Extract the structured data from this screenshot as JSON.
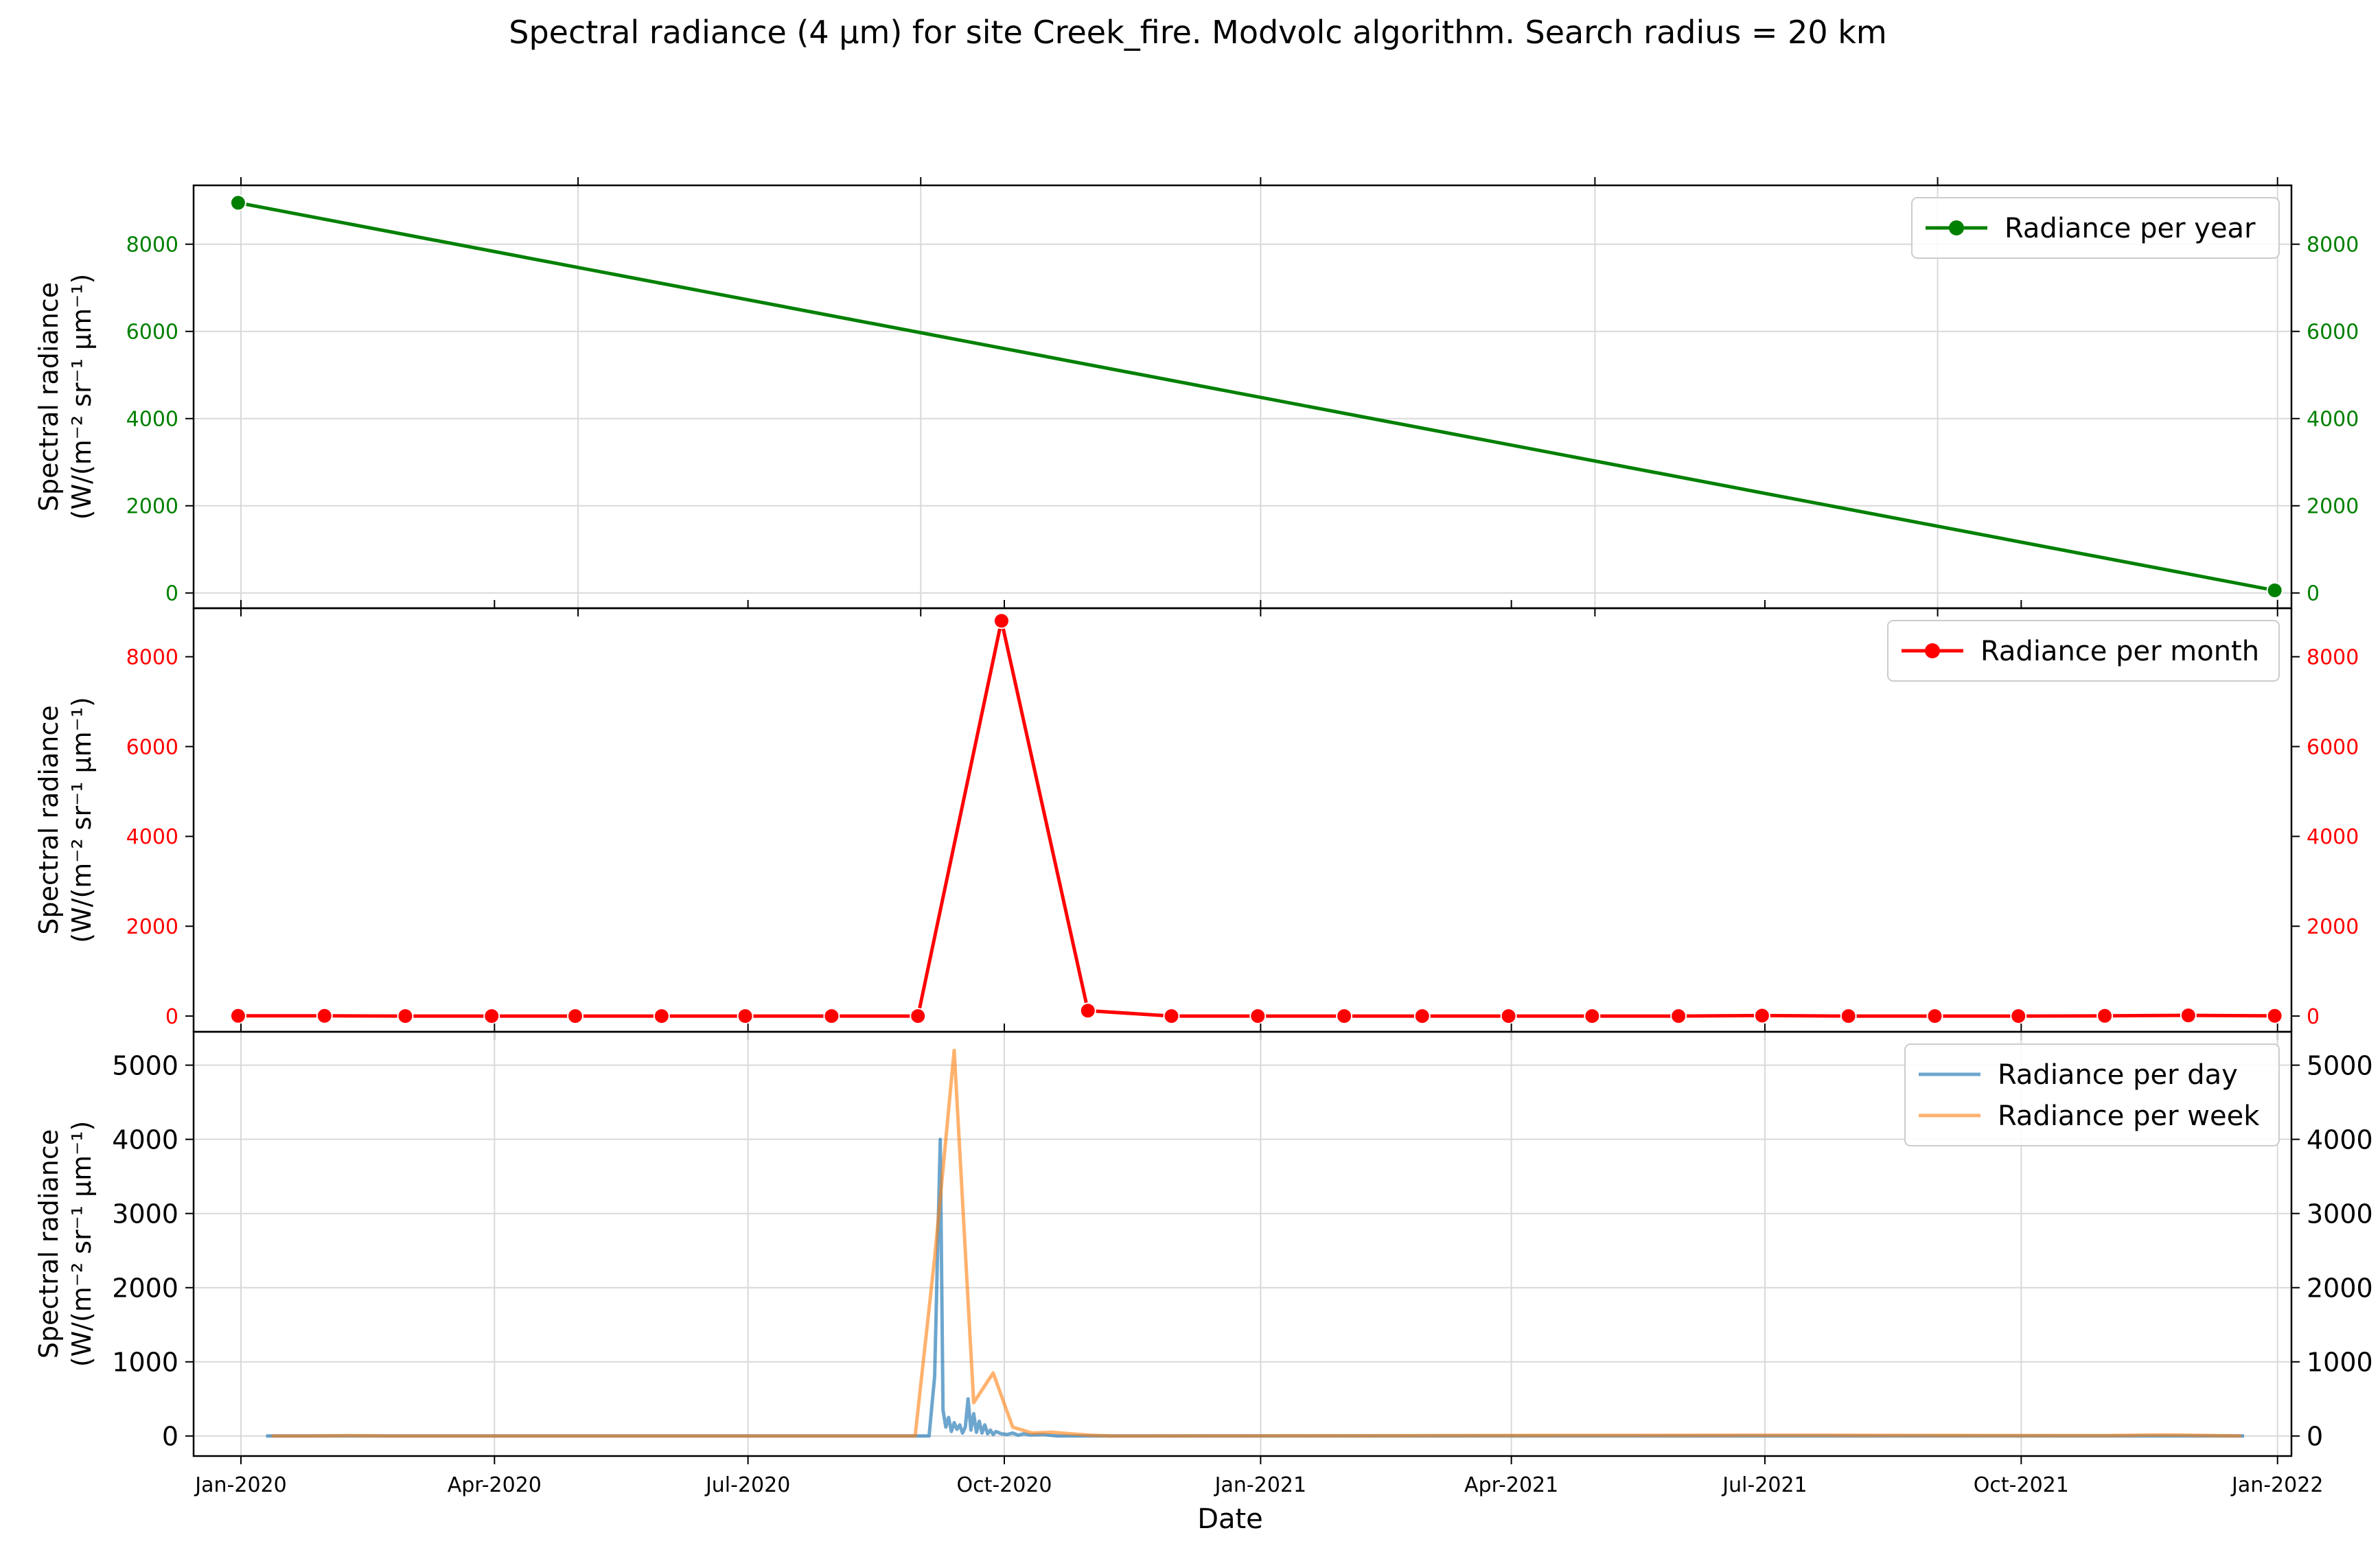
{
  "title": "Spectral radiance (4 µm) for site Creek_fire. Modvolc algorithm. Search radius = 20 km",
  "xlabel": "Date",
  "x_ticks": [
    {
      "label": "Jan-2020",
      "date": "2020-01-01"
    },
    {
      "label": "Apr-2020",
      "date": "2020-04-01"
    },
    {
      "label": "Jul-2020",
      "date": "2020-07-01"
    },
    {
      "label": "Oct-2020",
      "date": "2020-10-01"
    },
    {
      "label": "Jan-2021",
      "date": "2021-01-01"
    },
    {
      "label": "Apr-2021",
      "date": "2021-04-01"
    },
    {
      "label": "Jul-2021",
      "date": "2021-07-01"
    },
    {
      "label": "Oct-2021",
      "date": "2021-10-01"
    },
    {
      "label": "Jan-2022",
      "date": "2022-01-01"
    }
  ],
  "chart_data": [
    {
      "type": "line",
      "panel": "top",
      "ylabel_line1": "Spectral radiance",
      "ylabel_line2": "(W/(m⁻² sr⁻¹ µm⁻¹)",
      "ylim": [
        -350,
        9350
      ],
      "y_ticks": [
        0,
        2000,
        4000,
        6000,
        8000
      ],
      "grid": true,
      "tick_color": "#008000",
      "x_grid_dates": [
        "2020-01-01",
        "2020-05-01",
        "2020-09-01",
        "2021-01-01",
        "2021-05-01",
        "2021-09-01",
        "2022-01-01"
      ],
      "legend_position": "top-right",
      "series": [
        {
          "name": "Radiance per year",
          "color": "#008000",
          "marker": true,
          "x": [
            "2019-12-31",
            "2021-12-31"
          ],
          "y": [
            8950,
            60
          ]
        }
      ]
    },
    {
      "type": "line",
      "panel": "middle",
      "ylabel_line1": "Spectral radiance",
      "ylabel_line2": "(W/(m⁻² sr⁻¹ µm⁻¹)",
      "ylim": [
        -350,
        9080
      ],
      "y_ticks": [
        0,
        2000,
        4000,
        6000,
        8000
      ],
      "grid": false,
      "tick_color": "#ff0000",
      "legend_position": "top-right",
      "series": [
        {
          "name": "Radiance per month",
          "color": "#ff0000",
          "marker": true,
          "x": [
            "2019-12-31",
            "2020-01-31",
            "2020-02-29",
            "2020-03-31",
            "2020-04-30",
            "2020-05-31",
            "2020-06-30",
            "2020-07-31",
            "2020-08-31",
            "2020-09-30",
            "2020-10-31",
            "2020-11-30",
            "2020-12-31",
            "2021-01-31",
            "2021-02-28",
            "2021-03-31",
            "2021-04-30",
            "2021-05-31",
            "2021-06-30",
            "2021-07-31",
            "2021-08-31",
            "2021-09-30",
            "2021-10-31",
            "2021-11-30",
            "2021-12-31"
          ],
          "y": [
            5,
            5,
            0,
            0,
            0,
            0,
            0,
            0,
            0,
            8800,
            120,
            0,
            0,
            0,
            0,
            0,
            0,
            0,
            10,
            0,
            0,
            0,
            5,
            15,
            5
          ]
        }
      ]
    },
    {
      "type": "line",
      "panel": "bottom",
      "ylabel_line1": "Spectral radiance",
      "ylabel_line2": "(W/(m⁻² sr⁻¹ µm⁻¹)",
      "ylim": [
        -270,
        5450
      ],
      "y_ticks": [
        0,
        1000,
        2000,
        3000,
        4000,
        5000
      ],
      "grid": true,
      "tick_color": "#000000",
      "legend_position": "top-right",
      "series": [
        {
          "name": "Radiance per day",
          "color": "#1f77b4",
          "opacity": 0.65,
          "marker": false,
          "x": [
            "2020-01-10",
            "2020-09-04",
            "2020-09-06",
            "2020-09-08",
            "2020-09-09",
            "2020-09-10",
            "2020-09-11",
            "2020-09-12",
            "2020-09-13",
            "2020-09-14",
            "2020-09-15",
            "2020-09-16",
            "2020-09-17",
            "2020-09-18",
            "2020-09-19",
            "2020-09-20",
            "2020-09-21",
            "2020-09-22",
            "2020-09-23",
            "2020-09-24",
            "2020-09-25",
            "2020-09-26",
            "2020-09-27",
            "2020-09-28",
            "2020-09-30",
            "2020-10-02",
            "2020-10-04",
            "2020-10-06",
            "2020-10-08",
            "2020-10-10",
            "2020-10-15",
            "2020-10-20",
            "2020-10-26",
            "2021-12-20"
          ],
          "y": [
            0,
            0,
            800,
            4000,
            350,
            120,
            250,
            60,
            180,
            90,
            150,
            40,
            120,
            500,
            80,
            300,
            50,
            200,
            40,
            150,
            30,
            80,
            20,
            60,
            30,
            20,
            40,
            10,
            30,
            15,
            20,
            0,
            0,
            0
          ]
        },
        {
          "name": "Radiance per week",
          "color": "#ff7f0e",
          "opacity": 0.6,
          "marker": false,
          "x": [
            "2020-01-12",
            "2020-01-26",
            "2020-02-09",
            "2020-02-23",
            "2020-03-08",
            "2020-08-30",
            "2020-09-06",
            "2020-09-13",
            "2020-09-20",
            "2020-09-27",
            "2020-10-04",
            "2020-10-11",
            "2020-10-18",
            "2020-10-25",
            "2020-11-01",
            "2020-11-08",
            "2021-07-04",
            "2021-10-31",
            "2021-11-21",
            "2021-12-19"
          ],
          "y": [
            0,
            0,
            5,
            0,
            0,
            0,
            2400,
            5200,
            450,
            850,
            120,
            40,
            50,
            30,
            10,
            0,
            10,
            5,
            15,
            0
          ]
        }
      ]
    }
  ]
}
